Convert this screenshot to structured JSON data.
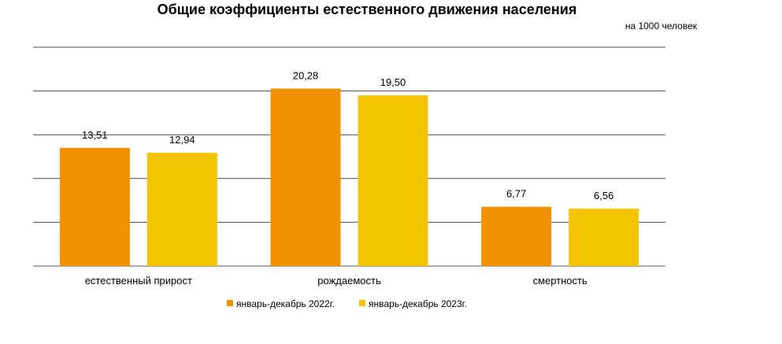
{
  "chart_data": {
    "type": "bar",
    "title": "Общие коэффициенты  естественного  движения  населения",
    "unit_note": "на 1000 человек",
    "categories": [
      "естественный прирост",
      "рождаемость",
      "смертность"
    ],
    "series": [
      {
        "name": "январь-декабрь 2022г.",
        "color": "#F39200",
        "values": [
          13.51,
          20.28,
          6.77
        ],
        "labels": [
          "13,51",
          "20,28",
          "6,77"
        ]
      },
      {
        "name": "январь-декабрь 2023г.",
        "color": "#F5C400",
        "values": [
          12.94,
          19.5,
          6.56
        ],
        "labels": [
          "12,94",
          "19,50",
          "6,56"
        ]
      }
    ],
    "ylim": [
      0,
      25
    ],
    "grid": true,
    "legend_position": "bottom"
  }
}
